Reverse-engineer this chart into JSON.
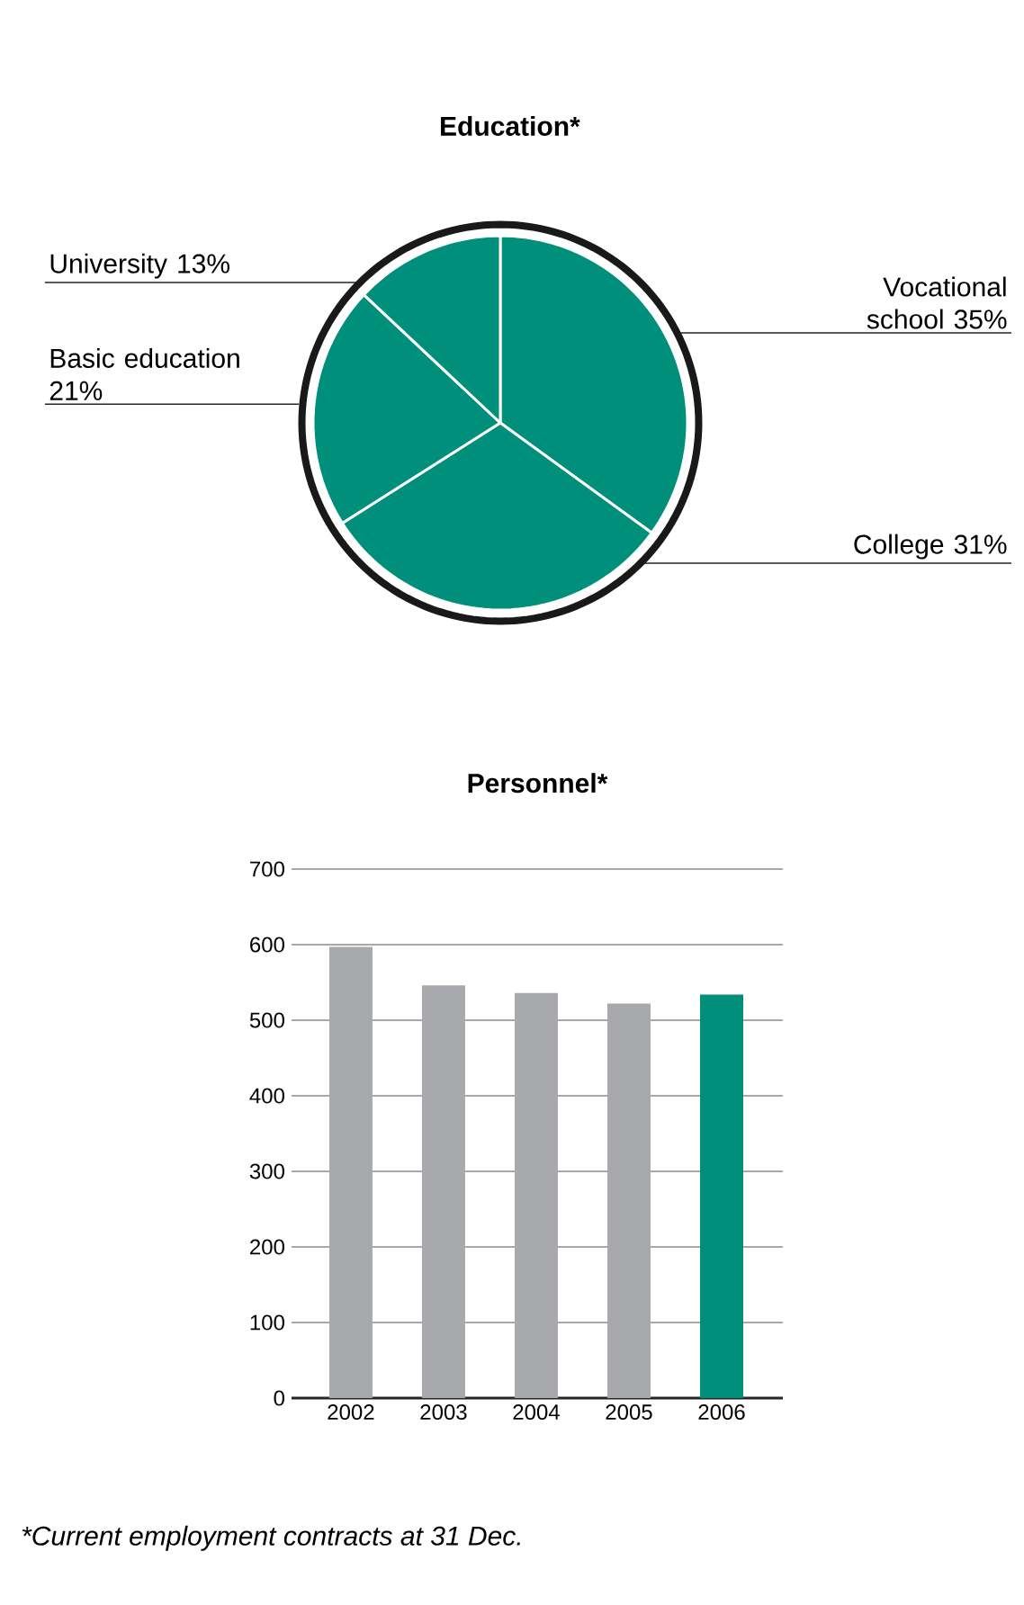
{
  "chart_data": [
    {
      "type": "pie",
      "title": "Education*",
      "categories": [
        "Vocational school",
        "College",
        "Basic education",
        "University"
      ],
      "values": [
        35,
        31,
        21,
        13
      ],
      "value_labels": [
        "35%",
        "31%",
        "21%",
        "13%"
      ],
      "colors": [
        "#008f7a",
        "#008f7a",
        "#008f7a",
        "#008f7a"
      ]
    },
    {
      "type": "bar",
      "title": "Personnel*",
      "categories": [
        "2002",
        "2003",
        "2004",
        "2005",
        "2006"
      ],
      "values": [
        597,
        546,
        536,
        522,
        534
      ],
      "colors": [
        "#a7a9ac",
        "#a7a9ac",
        "#a7a9ac",
        "#a7a9ac",
        "#008f7a"
      ],
      "ylim": [
        0,
        700
      ],
      "yticks": [
        0,
        100,
        200,
        300,
        400,
        500,
        600,
        700
      ],
      "grid": "y",
      "annotations": [
        "*Current employment contracts at 31 Dec."
      ]
    }
  ]
}
